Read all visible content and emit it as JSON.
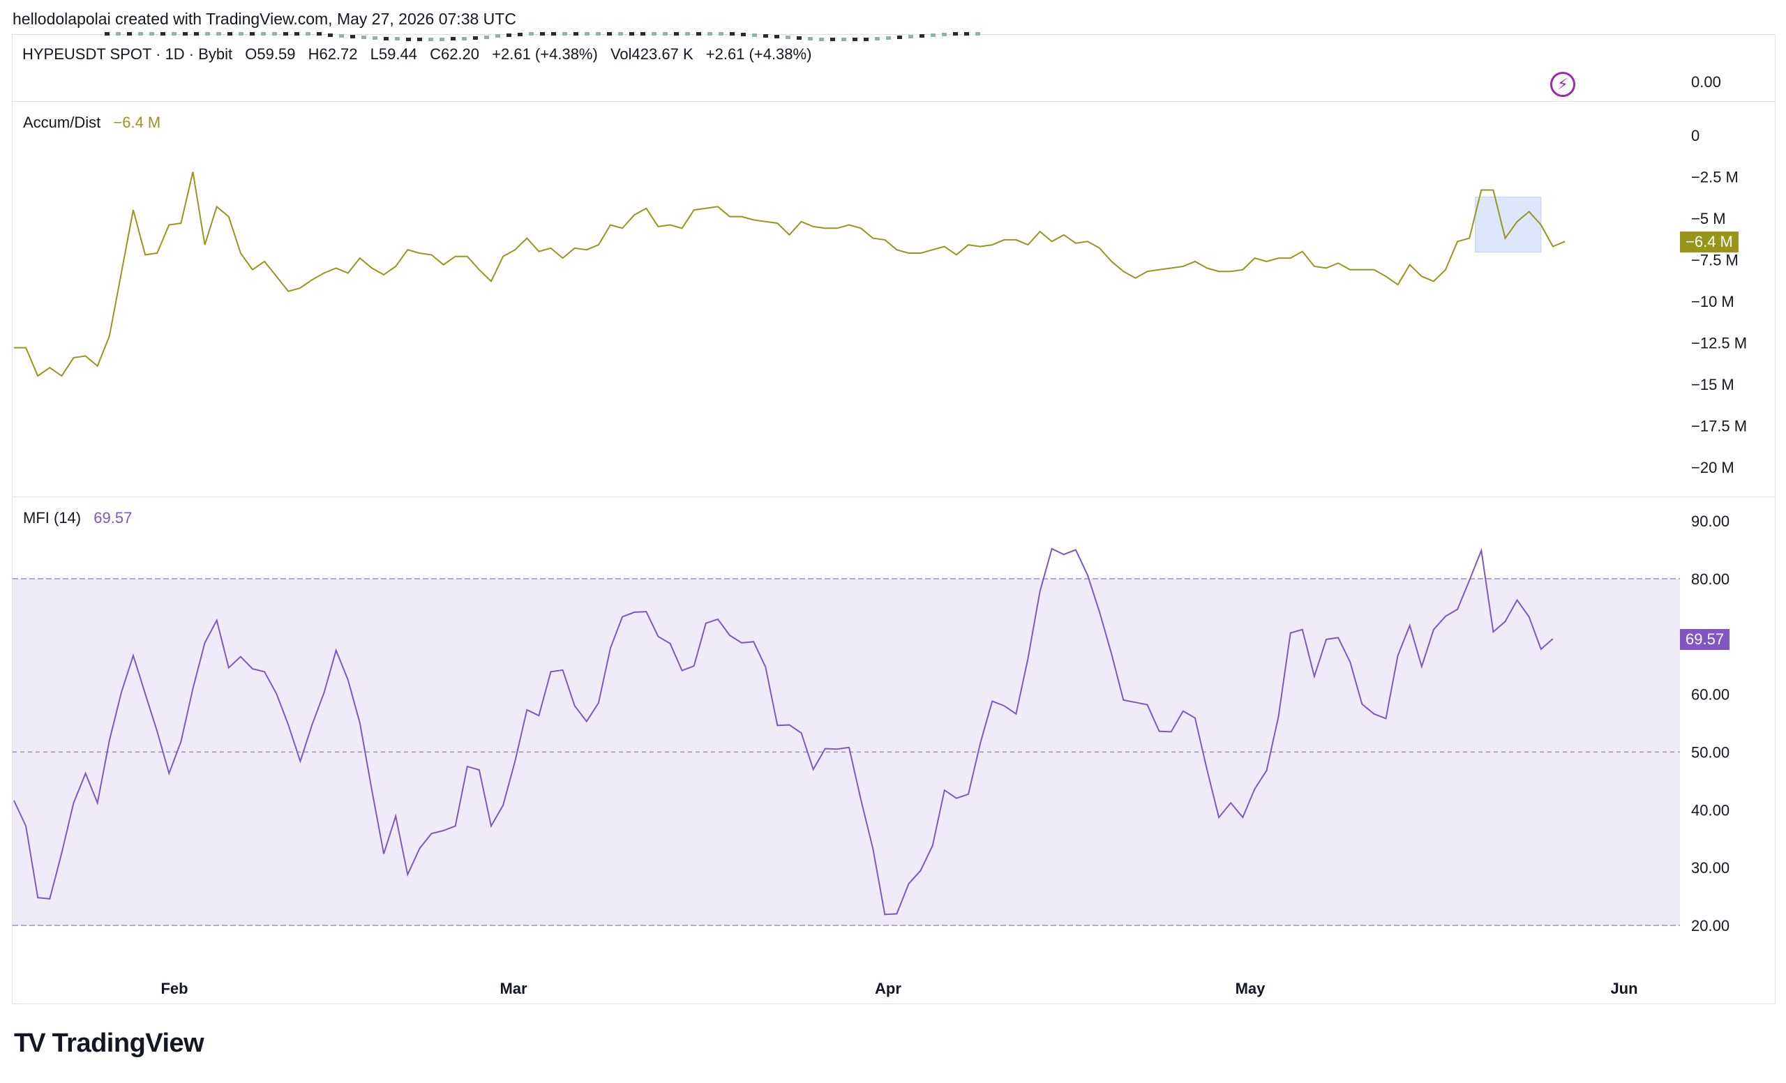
{
  "header": {
    "text": "hellodolapolai created with TradingView.com, May 27, 2026 07:38 UTC"
  },
  "symbol": {
    "name": "HYPEUSDT SPOT · 1D · Bybit",
    "open": "O59.59",
    "high": "H62.72",
    "low": "L59.44",
    "close": "C62.20",
    "change": "+2.61 (+4.38%)",
    "volume": "Vol423.67 K",
    "volume_change": "+2.61 (+4.38%)",
    "axis_value": "0.00"
  },
  "indicators": {
    "ad": {
      "label": "Accum/Dist",
      "value": "−6.4 M",
      "color": "#98961a",
      "badge": "−6.4 M"
    },
    "mfi": {
      "label": "MFI (14)",
      "value": "69.57",
      "color": "#7e57c2",
      "badge": "69.57",
      "band_fill": "#f0ebf9"
    }
  },
  "colors": {
    "highlight": "#dde6fa",
    "grid_dash": "#9c8fc0",
    "bolt": "#9c27b0"
  },
  "icons": {
    "bolt": "⚡",
    "logo": "TV"
  },
  "branding": {
    "logo_text": "TradingView"
  },
  "chart_data": [
    {
      "type": "line",
      "name": "Accum/Dist",
      "x_labels": [
        "Feb",
        "Mar",
        "Apr",
        "May",
        "Jun"
      ],
      "y_ticks": [
        "0",
        "−2.5 M",
        "−5 M",
        "−7.5 M",
        "−10 M",
        "−12.5 M",
        "−15 M",
        "−17.5 M",
        "−20 M"
      ],
      "ylim": [
        -20,
        0
      ],
      "unit": "M",
      "values": [
        -12.8,
        -12.8,
        -14.5,
        -14.0,
        -14.5,
        -13.4,
        -13.3,
        -13.9,
        -12.1,
        -8.3,
        -4.5,
        -7.2,
        -7.1,
        -5.4,
        -5.3,
        -2.2,
        -6.6,
        -4.3,
        -4.9,
        -7.1,
        -8.1,
        -7.6,
        -8.5,
        -9.4,
        -9.2,
        -8.7,
        -8.3,
        -8.0,
        -8.3,
        -7.4,
        -8.0,
        -8.4,
        -7.9,
        -6.9,
        -7.1,
        -7.2,
        -7.8,
        -7.3,
        -7.3,
        -8.1,
        -8.8,
        -7.3,
        -6.9,
        -6.2,
        -7.0,
        -6.8,
        -7.4,
        -6.8,
        -6.9,
        -6.6,
        -5.4,
        -5.6,
        -4.8,
        -4.4,
        -5.5,
        -5.4,
        -5.6,
        -4.5,
        -4.4,
        -4.3,
        -4.9,
        -4.9,
        -5.1,
        -5.2,
        -5.3,
        -6.0,
        -5.2,
        -5.5,
        -5.6,
        -5.6,
        -5.4,
        -5.6,
        -6.2,
        -6.3,
        -6.9,
        -7.1,
        -7.1,
        -6.9,
        -6.7,
        -7.2,
        -6.6,
        -6.7,
        -6.6,
        -6.3,
        -6.3,
        -6.6,
        -5.8,
        -6.4,
        -6.0,
        -6.5,
        -6.4,
        -6.8,
        -7.6,
        -8.2,
        -8.6,
        -8.2,
        -8.1,
        -8.0,
        -7.9,
        -7.6,
        -8.0,
        -8.2,
        -8.2,
        -8.1,
        -7.4,
        -7.6,
        -7.4,
        -7.4,
        -7.0,
        -7.9,
        -8.0,
        -7.7,
        -8.1,
        -8.1,
        -8.1,
        -8.5,
        -9.0,
        -7.8,
        -8.5,
        -8.8,
        -8.1,
        -6.4,
        -6.2,
        -3.3,
        -3.3,
        -6.2,
        -5.2,
        -4.6,
        -5.4,
        -6.7,
        -6.4
      ]
    },
    {
      "type": "line",
      "name": "MFI (14)",
      "x_labels": [
        "Feb",
        "Mar",
        "Apr",
        "May",
        "Jun"
      ],
      "y_ticks": [
        "90.00",
        "80.00",
        "60.00",
        "50.00",
        "40.00",
        "30.00",
        "20.00"
      ],
      "ylim": [
        20,
        90
      ],
      "bands": {
        "upper": 80,
        "middle": 50,
        "lower": 20
      },
      "values": [
        41.6,
        37.2,
        24.8,
        24.6,
        32.5,
        41.2,
        46.3,
        41.2,
        52.0,
        60.3,
        66.7,
        60.1,
        53.6,
        46.3,
        51.8,
        61.0,
        68.9,
        72.8,
        64.6,
        66.5,
        64.4,
        63.9,
        60.1,
        54.7,
        48.4,
        54.8,
        60.3,
        67.6,
        62.5,
        55.0,
        43.4,
        32.4,
        38.9,
        28.8,
        33.3,
        35.9,
        36.4,
        37.2,
        47.5,
        46.9,
        37.2,
        40.8,
        48.4,
        57.3,
        56.3,
        63.9,
        64.2,
        58.0,
        55.3,
        58.5,
        68.0,
        73.4,
        74.2,
        74.3,
        70.0,
        68.8,
        64.1,
        64.9,
        72.3,
        73.0,
        70.2,
        68.9,
        69.1,
        64.7,
        54.6,
        54.7,
        53.3,
        47.0,
        50.6,
        50.5,
        50.8,
        41.7,
        33.3,
        21.9,
        22.0,
        27.2,
        29.5,
        33.8,
        43.4,
        42.0,
        42.7,
        51.5,
        58.8,
        58.0,
        56.6,
        66.2,
        77.8,
        85.2,
        84.2,
        85.0,
        80.6,
        74.2,
        67.0,
        59.0,
        58.6,
        58.2,
        53.6,
        53.5,
        57.1,
        55.9,
        47.0,
        38.7,
        41.2,
        38.7,
        43.6,
        46.8,
        56.2,
        70.6,
        71.2,
        63.1,
        69.5,
        69.8,
        65.6,
        58.3,
        56.6,
        55.8,
        66.7,
        71.9,
        64.8,
        71.2,
        73.5,
        74.7,
        79.7,
        84.9,
        70.8,
        72.6,
        76.3,
        73.4,
        67.8,
        69.6
      ]
    }
  ]
}
